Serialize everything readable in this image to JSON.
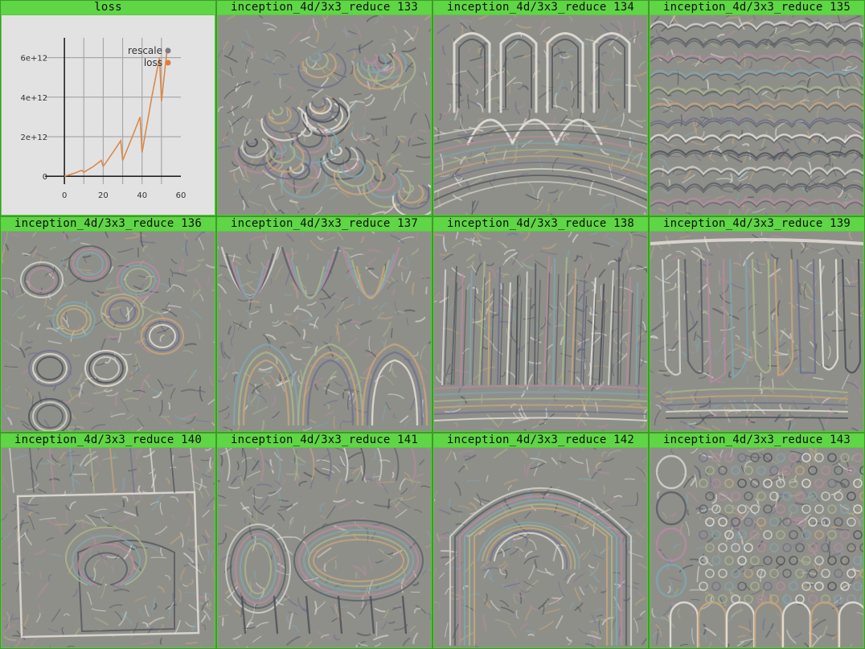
{
  "panels": [
    {
      "title": "loss",
      "kind": "chart"
    },
    {
      "title": "inception_4d/3x3_reduce 133",
      "kind": "image",
      "pattern": "swirls",
      "seed": 133
    },
    {
      "title": "inception_4d/3x3_reduce 134",
      "kind": "image",
      "pattern": "fingers",
      "seed": 134
    },
    {
      "title": "inception_4d/3x3_reduce 135",
      "kind": "image",
      "pattern": "waves",
      "seed": 135
    },
    {
      "title": "inception_4d/3x3_reduce 136",
      "kind": "image",
      "pattern": "blobs",
      "seed": 136
    },
    {
      "title": "inception_4d/3x3_reduce 137",
      "kind": "image",
      "pattern": "lobes",
      "seed": 137
    },
    {
      "title": "inception_4d/3x3_reduce 138",
      "kind": "image",
      "pattern": "spikes",
      "seed": 138
    },
    {
      "title": "inception_4d/3x3_reduce 139",
      "kind": "image",
      "pattern": "columns",
      "seed": 139
    },
    {
      "title": "inception_4d/3x3_reduce 140",
      "kind": "image",
      "pattern": "frame",
      "seed": 140
    },
    {
      "title": "inception_4d/3x3_reduce 141",
      "kind": "image",
      "pattern": "pods",
      "seed": 141
    },
    {
      "title": "inception_4d/3x3_reduce 142",
      "kind": "image",
      "pattern": "arch",
      "seed": 142
    },
    {
      "title": "inception_4d/3x3_reduce 143",
      "kind": "image",
      "pattern": "dots",
      "seed": 143
    }
  ],
  "colors": {
    "title_bar": "#5fd645",
    "border": "#3f9a2a",
    "feature_bg": "#8c8c8c",
    "chart_bg": "#e2e2e2",
    "loss_line": "#d98a4b",
    "rescale_marker": "#7d7d7d",
    "loss_marker": "#e07b39"
  },
  "chart_data": {
    "type": "line",
    "title": "loss",
    "xlabel": "",
    "ylabel": "",
    "xlim": [
      -10,
      60
    ],
    "ylim": [
      -400000000000.0,
      7000000000000.0
    ],
    "x_ticks": [
      0,
      20,
      40,
      60
    ],
    "x_tick_labels": [
      "0",
      "20",
      "40",
      "60"
    ],
    "y_ticks": [
      0,
      2000000000000.0,
      4000000000000.0,
      6000000000000.0
    ],
    "y_tick_labels": [
      "0",
      "2e+12",
      "4e+12",
      "6e+12"
    ],
    "grid": true,
    "legend_position": "top-right",
    "series": [
      {
        "name": "rescale",
        "color": "#7d7d7d",
        "x": [],
        "y": []
      },
      {
        "name": "loss",
        "color": "#d98a4b",
        "x": [
          0,
          5,
          9,
          10,
          15,
          19,
          20,
          25,
          29,
          30,
          35,
          39,
          40,
          45,
          49,
          50,
          53
        ],
        "y": [
          0,
          150000000000.0,
          300000000000.0,
          200000000000.0,
          500000000000.0,
          800000000000.0,
          500000000000.0,
          1200000000000.0,
          1800000000000.0,
          800000000000.0,
          2000000000000.0,
          3000000000000.0,
          1200000000000.0,
          4000000000000.0,
          6000000000000.0,
          3800000000000.0,
          6500000000000.0
        ]
      }
    ]
  }
}
